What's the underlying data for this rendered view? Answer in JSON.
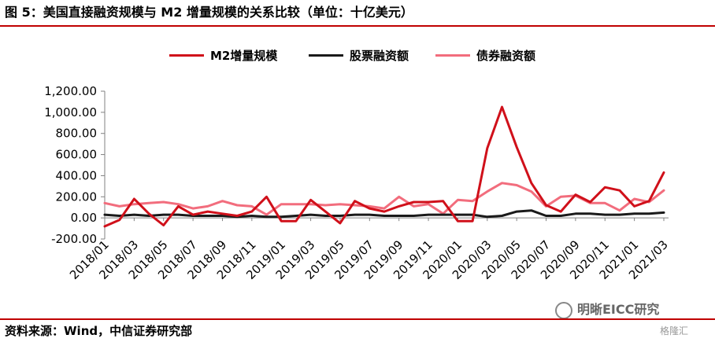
{
  "header": {
    "title": "图 5：美国直接融资规模与 M2 增量规模的关系比较（单位：十亿美元）"
  },
  "footer": {
    "source": "资料来源：Wind，中信证券研究部"
  },
  "watermark": {
    "text": "明晰EICC研究",
    "text2": "格隆汇"
  },
  "colors": {
    "rule": "#c00000"
  },
  "chart_data": {
    "type": "line",
    "title": "图 5：美国直接融资规模与 M2 增量规模的关系比较（单位：十亿美元）",
    "xlabel": "",
    "ylabel": "",
    "ylim": [
      -200,
      1200
    ],
    "yticks": [
      -200,
      0,
      200,
      400,
      600,
      800,
      1000,
      1200
    ],
    "ytick_labels": [
      "-200.00",
      "0.00",
      "200.00",
      "400.00",
      "600.00",
      "800.00",
      "1,000.00",
      "1,200.00"
    ],
    "grid": false,
    "legend_position": "top",
    "x": [
      "2018/01",
      "2018/02",
      "2018/03",
      "2018/04",
      "2018/05",
      "2018/06",
      "2018/07",
      "2018/08",
      "2018/09",
      "2018/10",
      "2018/11",
      "2018/12",
      "2019/01",
      "2019/02",
      "2019/03",
      "2019/04",
      "2019/05",
      "2019/06",
      "2019/07",
      "2019/08",
      "2019/09",
      "2019/10",
      "2019/11",
      "2019/12",
      "2020/01",
      "2020/02",
      "2020/03",
      "2020/04",
      "2020/05",
      "2020/06",
      "2020/07",
      "2020/08",
      "2020/09",
      "2020/10",
      "2020/11",
      "2020/12",
      "2021/01",
      "2021/02",
      "2021/03"
    ],
    "xtick_labels": [
      "2018/01",
      "2018/03",
      "2018/05",
      "2018/07",
      "2018/09",
      "2018/11",
      "2019/01",
      "2019/03",
      "2019/05",
      "2019/07",
      "2019/09",
      "2019/11",
      "2020/01",
      "2020/03",
      "2020/05",
      "2020/07",
      "2020/09",
      "2020/11",
      "2021/01",
      "2021/03"
    ],
    "series": [
      {
        "name": "M2增量规模",
        "color": "#d0101a",
        "values": [
          -80,
          -20,
          180,
          40,
          -70,
          110,
          30,
          60,
          40,
          20,
          60,
          200,
          -30,
          -30,
          170,
          60,
          -50,
          160,
          90,
          60,
          110,
          150,
          150,
          160,
          -30,
          -30,
          660,
          1050,
          670,
          330,
          120,
          60,
          220,
          150,
          290,
          260,
          110,
          160,
          430
        ]
      },
      {
        "name": "股票融资额",
        "color": "#1a1a1a",
        "values": [
          30,
          20,
          30,
          20,
          30,
          30,
          20,
          20,
          20,
          10,
          20,
          10,
          10,
          20,
          30,
          20,
          20,
          30,
          30,
          20,
          20,
          20,
          30,
          30,
          30,
          30,
          10,
          20,
          60,
          70,
          20,
          20,
          40,
          40,
          30,
          30,
          40,
          40,
          50
        ]
      },
      {
        "name": "债券融资额",
        "color": "#f26d7d",
        "values": [
          140,
          110,
          130,
          140,
          150,
          130,
          90,
          110,
          160,
          120,
          110,
          30,
          130,
          130,
          130,
          120,
          130,
          120,
          110,
          90,
          200,
          110,
          130,
          40,
          170,
          160,
          250,
          330,
          310,
          250,
          110,
          200,
          210,
          140,
          140,
          70,
          180,
          150,
          260
        ]
      }
    ]
  }
}
